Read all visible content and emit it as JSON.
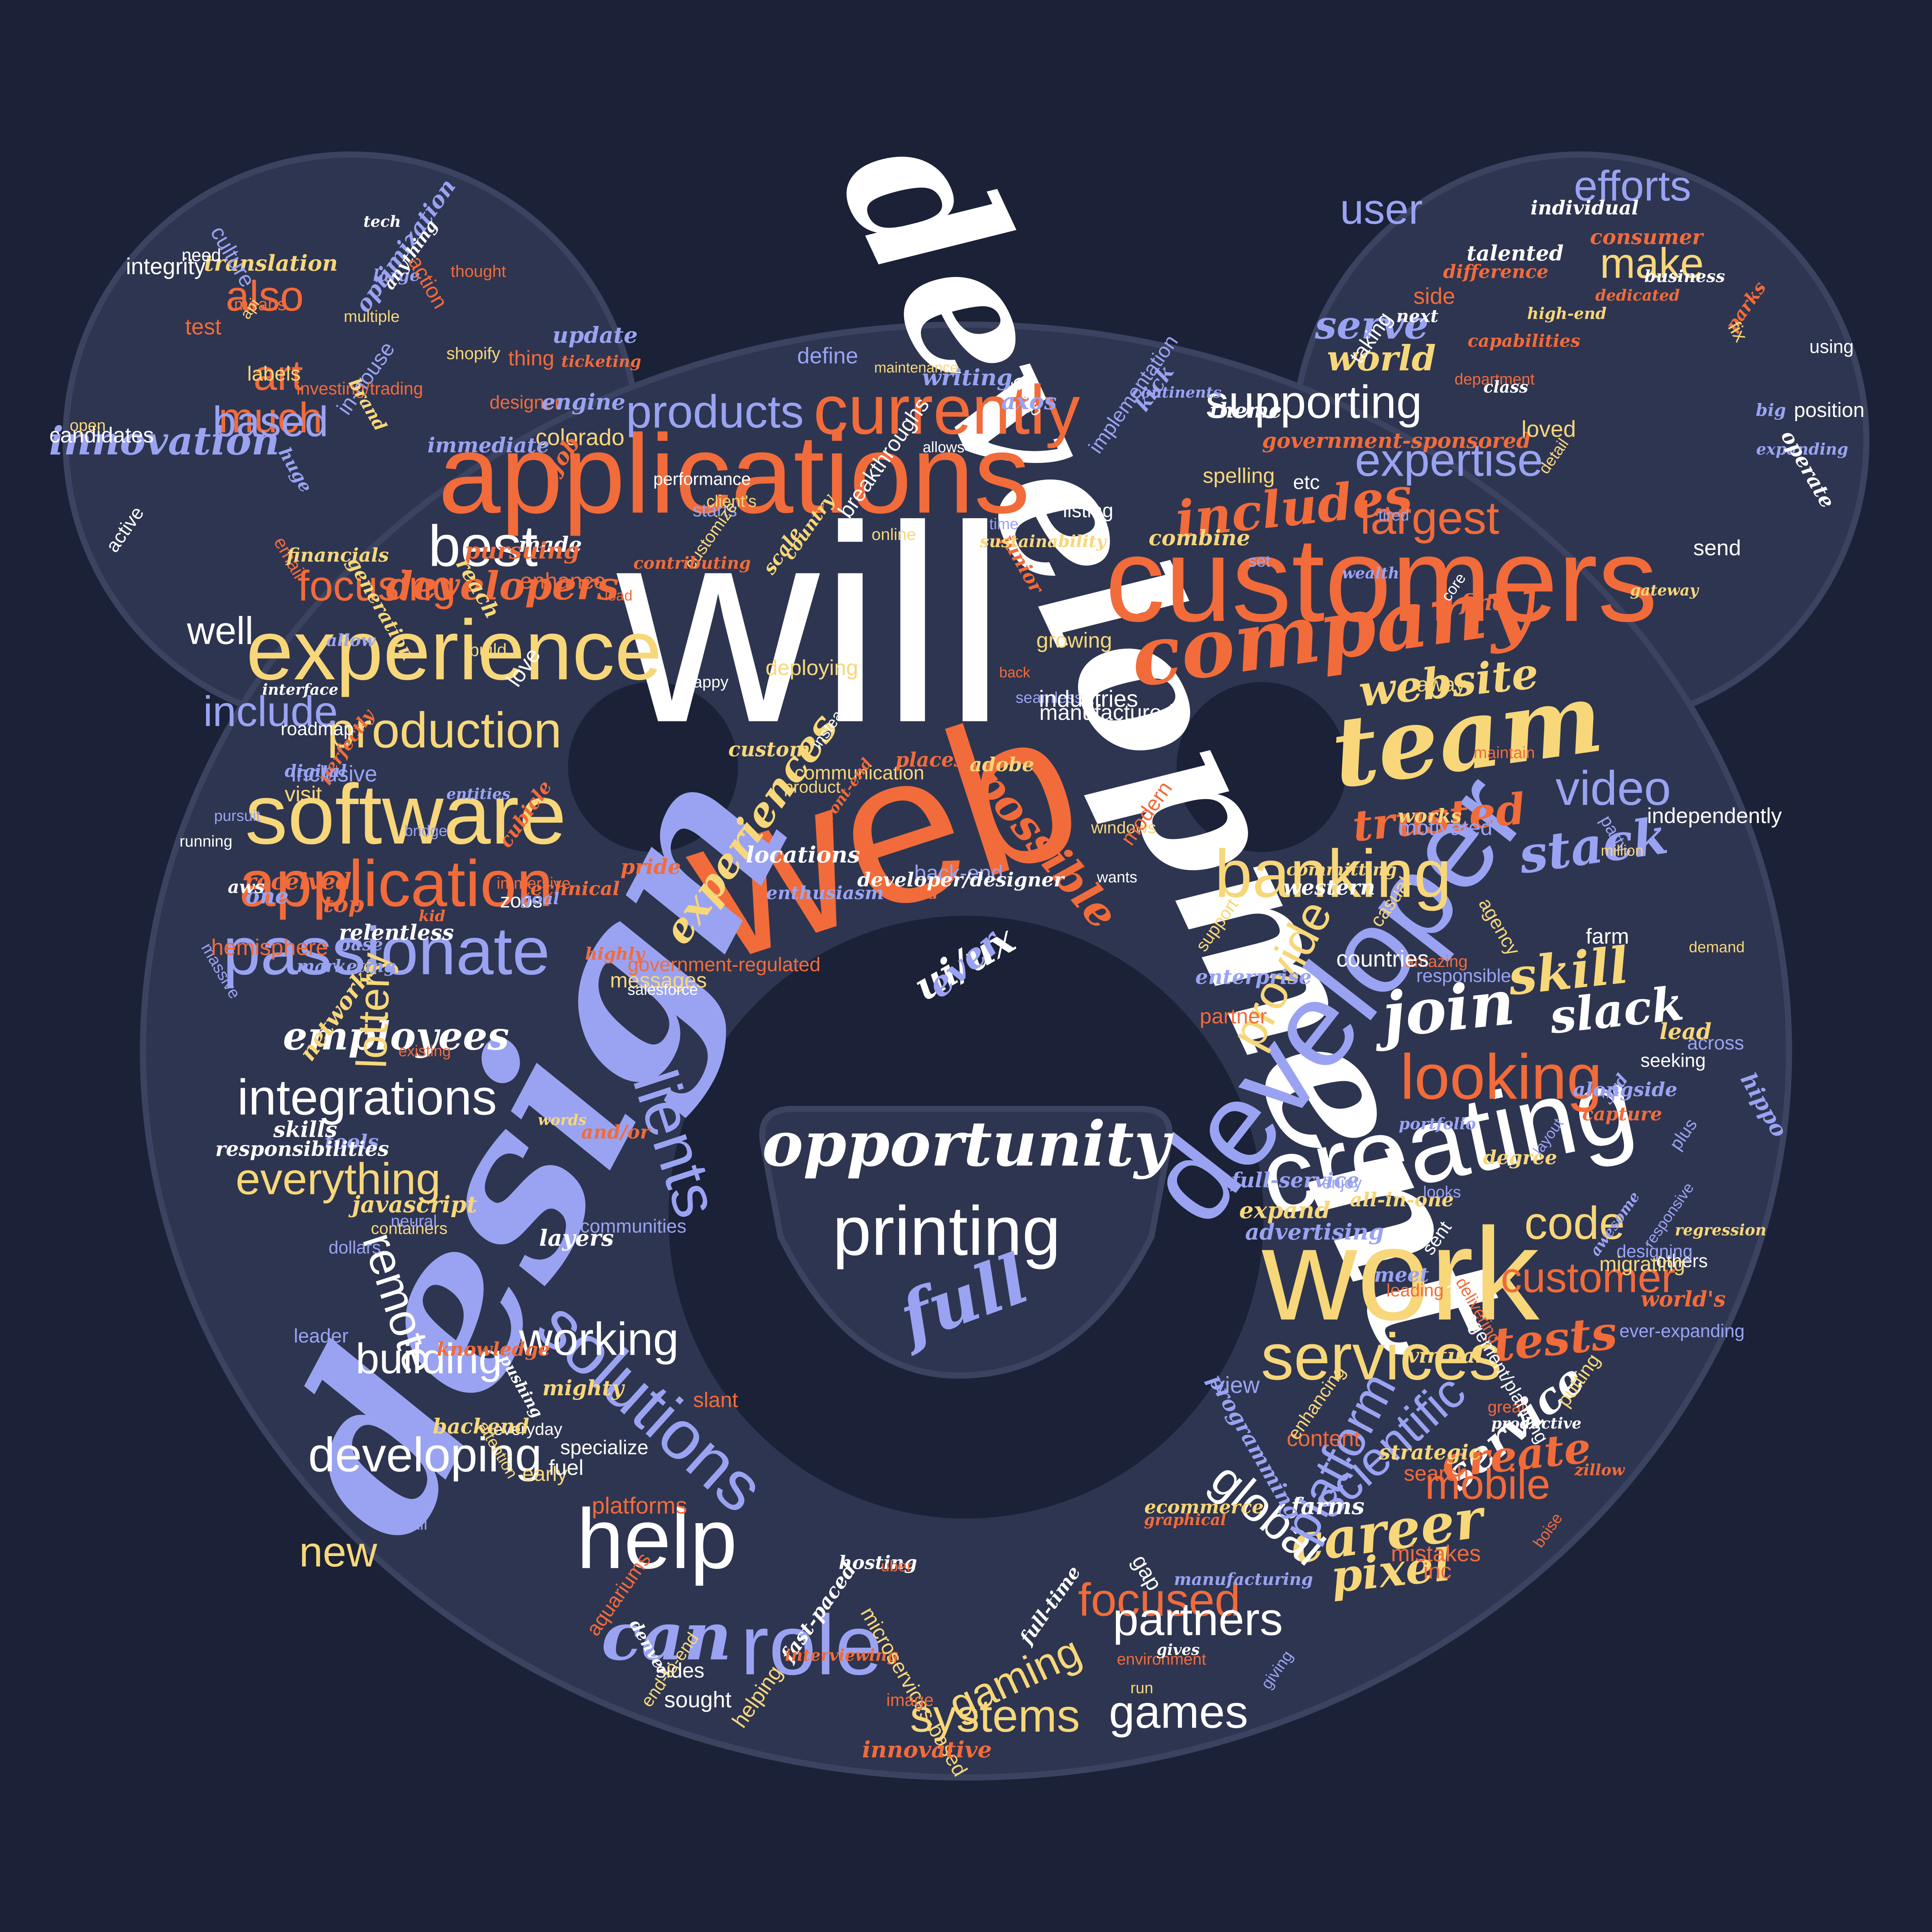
{
  "colors": {
    "background": "#1b2136",
    "bear_fill": "#2e3550",
    "bear_outline": "#3c4360",
    "white": "#ffffff",
    "orange": "#f26b3a",
    "yellow": "#f7d77a",
    "periwinkle": "#9aa3f2"
  },
  "words": [
    {
      "text": "will",
      "c": "white",
      "s": "plain",
      "fs": 0.145,
      "r": 0
    },
    {
      "text": "development",
      "c": "white",
      "s": "script",
      "fs": 0.095,
      "r": 65
    },
    {
      "text": "web",
      "c": "orange",
      "s": "plain",
      "fs": 0.11,
      "r": -18
    },
    {
      "text": "design",
      "c": "periwinkle",
      "s": "script",
      "fs": 0.115,
      "r": -62
    },
    {
      "text": "customers",
      "c": "orange",
      "s": "plain",
      "fs": 0.062,
      "r": 0
    },
    {
      "text": "applications",
      "c": "orange",
      "s": "plain",
      "fs": 0.058,
      "r": 0
    },
    {
      "text": "developer",
      "c": "periwinkle",
      "s": "plain",
      "fs": 0.062,
      "r": -52
    },
    {
      "text": "work",
      "c": "yellow",
      "s": "plain",
      "fs": 0.068,
      "r": 0
    },
    {
      "text": "creating",
      "c": "white",
      "s": "plain",
      "fs": 0.055,
      "r": -12
    },
    {
      "text": "experience",
      "c": "yellow",
      "s": "plain",
      "fs": 0.044,
      "r": 0
    },
    {
      "text": "software",
      "c": "yellow",
      "s": "plain",
      "fs": 0.044,
      "r": 0
    },
    {
      "text": "team",
      "c": "yellow",
      "s": "script",
      "fs": 0.05,
      "r": -8
    },
    {
      "text": "company",
      "c": "orange",
      "s": "script",
      "fs": 0.042,
      "r": -8
    },
    {
      "text": "currently",
      "c": "orange",
      "s": "plain",
      "fs": 0.036,
      "r": 0
    },
    {
      "text": "help",
      "c": "white",
      "s": "plain",
      "fs": 0.044,
      "r": 0
    },
    {
      "text": "role",
      "c": "periwinkle",
      "s": "plain",
      "fs": 0.044,
      "r": 0
    },
    {
      "text": "solutions",
      "c": "periwinkle",
      "s": "plain",
      "fs": 0.036,
      "r": 42
    },
    {
      "text": "passionate",
      "c": "periwinkle",
      "s": "plain",
      "fs": 0.035,
      "r": 0
    },
    {
      "text": "application",
      "c": "orange",
      "s": "plain",
      "fs": 0.034,
      "r": 0
    },
    {
      "text": "banking",
      "c": "yellow",
      "s": "plain",
      "fs": 0.035,
      "r": 0
    },
    {
      "text": "printing",
      "c": "white",
      "s": "plain",
      "fs": 0.036,
      "r": 0
    },
    {
      "text": "opportunity",
      "c": "white",
      "s": "script",
      "fs": 0.032,
      "r": 0
    },
    {
      "text": "services",
      "c": "yellow",
      "s": "plain",
      "fs": 0.034,
      "r": 0
    },
    {
      "text": "looking",
      "c": "orange",
      "s": "plain",
      "fs": 0.033,
      "r": 0
    },
    {
      "text": "clients",
      "c": "periwinkle",
      "s": "plain",
      "fs": 0.033,
      "r": 72
    },
    {
      "text": "products",
      "c": "periwinkle",
      "s": "plain",
      "fs": 0.024,
      "r": 0
    },
    {
      "text": "best",
      "c": "white",
      "s": "plain",
      "fs": 0.03,
      "r": 0
    },
    {
      "text": "includes",
      "c": "orange",
      "s": "script",
      "fs": 0.026,
      "r": -6
    },
    {
      "text": "can",
      "c": "periwinkle",
      "s": "script",
      "fs": 0.034,
      "r": 0
    },
    {
      "text": "full",
      "c": "periwinkle",
      "s": "script",
      "fs": 0.035,
      "r": -20
    },
    {
      "text": "career",
      "c": "yellow",
      "s": "script",
      "fs": 0.028,
      "r": -8
    },
    {
      "text": "production",
      "c": "yellow",
      "s": "plain",
      "fs": 0.026,
      "r": 0
    },
    {
      "text": "integrations",
      "c": "white",
      "s": "plain",
      "fs": 0.026,
      "r": 0
    },
    {
      "text": "developing",
      "c": "white",
      "s": "plain",
      "fs": 0.025,
      "r": 0
    },
    {
      "text": "supporting",
      "c": "white",
      "s": "plain",
      "fs": 0.024,
      "r": 0
    },
    {
      "text": "expertise",
      "c": "periwinkle",
      "s": "plain",
      "fs": 0.024,
      "r": 0
    },
    {
      "text": "largest",
      "c": "orange",
      "s": "plain",
      "fs": 0.024,
      "r": 0
    },
    {
      "text": "website",
      "c": "yellow",
      "s": "script",
      "fs": 0.022,
      "r": -6
    },
    {
      "text": "trusted",
      "c": "orange",
      "s": "script",
      "fs": 0.022,
      "r": -6
    },
    {
      "text": "possible",
      "c": "orange",
      "s": "script",
      "fs": 0.022,
      "r": 50
    },
    {
      "text": "experiences",
      "c": "yellow",
      "s": "script",
      "fs": 0.021,
      "r": -55
    },
    {
      "text": "video",
      "c": "periwinkle",
      "s": "plain",
      "fs": 0.025,
      "r": 0
    },
    {
      "text": "stack",
      "c": "periwinkle",
      "s": "script",
      "fs": 0.026,
      "r": -8
    },
    {
      "text": "slack",
      "c": "white",
      "s": "script",
      "fs": 0.024,
      "r": -6
    },
    {
      "text": "join",
      "c": "white",
      "s": "script",
      "fs": 0.032,
      "r": -6
    },
    {
      "text": "skill",
      "c": "yellow",
      "s": "script",
      "fs": 0.026,
      "r": -6
    },
    {
      "text": "provide",
      "c": "yellow",
      "s": "plain",
      "fs": 0.025,
      "r": -62
    },
    {
      "text": "global",
      "c": "white",
      "s": "plain",
      "fs": 0.025,
      "r": 40
    },
    {
      "text": "platform",
      "c": "periwinkle",
      "s": "plain",
      "fs": 0.026,
      "r": -62
    },
    {
      "text": "scientific",
      "c": "periwinkle",
      "s": "plain",
      "fs": 0.025,
      "r": -42
    },
    {
      "text": "service",
      "c": "white",
      "s": "script",
      "fs": 0.022,
      "r": -40
    },
    {
      "text": "create",
      "c": "orange",
      "s": "script",
      "fs": 0.022,
      "r": -6
    },
    {
      "text": "mobile",
      "c": "orange",
      "s": "plain",
      "fs": 0.022,
      "r": 0
    },
    {
      "text": "customer",
      "c": "orange",
      "s": "plain",
      "fs": 0.022,
      "r": 0
    },
    {
      "text": "tests",
      "c": "orange",
      "s": "script",
      "fs": 0.024,
      "r": -6
    },
    {
      "text": "pixel",
      "c": "yellow",
      "s": "script",
      "fs": 0.023,
      "r": -6
    },
    {
      "text": "focused",
      "c": "orange",
      "s": "plain",
      "fs": 0.024,
      "r": 0
    },
    {
      "text": "partners",
      "c": "white",
      "s": "plain",
      "fs": 0.024,
      "r": 0
    },
    {
      "text": "gaming",
      "c": "yellow",
      "s": "plain",
      "fs": 0.022,
      "r": -25
    },
    {
      "text": "systems",
      "c": "yellow",
      "s": "plain",
      "fs": 0.024,
      "r": 0
    },
    {
      "text": "games",
      "c": "white",
      "s": "plain",
      "fs": 0.024,
      "r": 0
    },
    {
      "text": "code",
      "c": "yellow",
      "s": "plain",
      "fs": 0.024,
      "r": 0
    },
    {
      "text": "working",
      "c": "white",
      "s": "plain",
      "fs": 0.024,
      "r": 0
    },
    {
      "text": "remote",
      "c": "white",
      "s": "plain",
      "fs": 0.024,
      "r": 72
    },
    {
      "text": "building",
      "c": "white",
      "s": "plain",
      "fs": 0.022,
      "r": 0
    },
    {
      "text": "everything",
      "c": "yellow",
      "s": "plain",
      "fs": 0.023,
      "r": 0
    },
    {
      "text": "employees",
      "c": "white",
      "s": "script",
      "fs": 0.02,
      "r": 0
    },
    {
      "text": "lottery",
      "c": "yellow",
      "s": "plain",
      "fs": 0.022,
      "r": -88
    },
    {
      "text": "focusing",
      "c": "orange",
      "s": "plain",
      "fs": 0.022,
      "r": 0
    },
    {
      "text": "developers",
      "c": "orange",
      "s": "script",
      "fs": 0.02,
      "r": 0
    },
    {
      "text": "include",
      "c": "periwinkle",
      "s": "plain",
      "fs": 0.022,
      "r": 0
    },
    {
      "text": "innovation",
      "c": "periwinkle",
      "s": "script",
      "fs": 0.02,
      "r": 0
    },
    {
      "text": "well",
      "c": "white",
      "s": "plain",
      "fs": 0.02,
      "r": 0
    },
    {
      "text": "also",
      "c": "orange",
      "s": "plain",
      "fs": 0.022,
      "r": 0
    },
    {
      "text": "art",
      "c": "orange",
      "s": "plain",
      "fs": 0.022,
      "r": 0
    },
    {
      "text": "much",
      "c": "orange",
      "s": "plain",
      "fs": 0.022,
      "r": 0
    },
    {
      "text": "based",
      "c": "periwinkle",
      "s": "plain",
      "fs": 0.022,
      "r": 0
    },
    {
      "text": "serve",
      "c": "periwinkle",
      "s": "script",
      "fs": 0.02,
      "r": 0
    },
    {
      "text": "world",
      "c": "yellow",
      "s": "script",
      "fs": 0.018,
      "r": 0
    },
    {
      "text": "make",
      "c": "yellow",
      "s": "plain",
      "fs": 0.022,
      "r": 0
    },
    {
      "text": "efforts",
      "c": "periwinkle",
      "s": "plain",
      "fs": 0.022,
      "r": 0
    },
    {
      "text": "user",
      "c": "periwinkle",
      "s": "plain",
      "fs": 0.022,
      "r": 0
    },
    {
      "text": "new",
      "c": "yellow",
      "s": "plain",
      "fs": 0.022,
      "r": 0
    },
    {
      "text": "ui/ux",
      "c": "white",
      "s": "script",
      "fs": 0.02,
      "r": -30
    },
    {
      "text": "ever",
      "c": "periwinkle",
      "s": "script",
      "fs": 0.018,
      "r": -40
    }
  ],
  "small_words": [
    "email",
    "windows",
    "massive",
    "allows",
    "received",
    "colorado",
    "seamless",
    "send",
    "modern",
    "expand",
    "back-end",
    "made",
    "mistakes",
    "all-in-one",
    "starts",
    "wants",
    "capture",
    "gateway",
    "advertising",
    "tech",
    "boise",
    "customize",
    "pursuit",
    "sides",
    "dedicated",
    "communication",
    "define",
    "others",
    "content",
    "ecommerce",
    "responsible",
    "theme",
    "back",
    "containers",
    "plus",
    "fast-paced",
    "cubicle",
    "casual",
    "entities",
    "individual",
    "knowledge",
    "helping",
    "leader",
    "happy",
    "delivering",
    "visit",
    "inclusive",
    "hosting",
    "contributing",
    "degree",
    "base",
    "listing",
    "means",
    "putting",
    "implementation",
    "interface",
    "parks",
    "deploying",
    "designing",
    "everyday",
    "uber",
    "backend",
    "one",
    "developer/designer",
    "side",
    "build",
    "party",
    "aws",
    "pursuing",
    "high-end",
    "awesome",
    "active",
    "aquariums",
    "messages",
    "immediate",
    "love",
    "platforms",
    "growing",
    "meet",
    "using",
    "perfectly",
    "generation",
    "large",
    "salesforce",
    "junior",
    "spelling",
    "ever-expanding",
    "layers",
    "department",
    "agency",
    "in-house",
    "seeking",
    "ticketing",
    "words",
    "manufacturing",
    "running",
    "interviewing",
    "strategic",
    "giving",
    "manufactured",
    "investing/trading",
    "virtual",
    "small",
    "independently",
    "immersive",
    "microservices-based",
    "expanding",
    "next",
    "amazing",
    "sustainability",
    "continents",
    "relentless",
    "innovative",
    "migrating",
    "time",
    "performance",
    "designer",
    "javascript",
    "layout",
    "countries",
    "test",
    "online",
    "kick",
    "farm",
    "great",
    "regression",
    "looks",
    "business",
    "consumer",
    "lead",
    "hippo",
    "pushing",
    "leading",
    "early",
    "tired",
    "full-time",
    "difference",
    "translation",
    "allow",
    "fuel",
    "hemisphere",
    "financials",
    "enjoy",
    "taking",
    "find",
    "works",
    "writing",
    "candidates",
    "job",
    "networks",
    "huge",
    "farms",
    "image",
    "enhancing",
    "optimization",
    "sent",
    "places",
    "demand",
    "motivated",
    "zoos",
    "government-sponsored",
    "shopify",
    "across",
    "operate",
    "capabilities",
    "million",
    "portfolio",
    "denver",
    "front-end",
    "client's",
    "culture",
    "anything",
    "action",
    "detail",
    "marketing",
    "western",
    "highly",
    "committing",
    "full-service",
    "instead",
    "zillow",
    "end-to-end",
    "communities",
    "need",
    "enhance",
    "country",
    "enterprise",
    "roadmap",
    "maintain",
    "custom",
    "dollars",
    "class",
    "world's",
    "support",
    "digital",
    "industries",
    "and/or",
    "adobe",
    "engine",
    "position",
    "existing",
    "brand",
    "tools",
    "talented",
    "environment",
    "labels",
    "enthusiasm",
    "group",
    "technical",
    "combine",
    "wealth",
    "integrity",
    "government-regulated",
    "loved",
    "bridge",
    "gap",
    "partner",
    "open",
    "programming",
    "productive",
    "thing",
    "attention",
    "goal",
    "gives",
    "slant",
    "api",
    "alongside",
    "locations",
    "inc",
    "run",
    "update",
    "core",
    "thought",
    "fix",
    "view",
    "etc",
    "graphical",
    "multiple",
    "responsive",
    "specialize",
    "top",
    "mighty",
    "neural",
    "sought",
    "kid",
    "maintenance",
    "set",
    "responsibilities",
    "pride",
    "product",
    "3rd",
    "breakthroughs",
    "paid",
    "reach",
    "big",
    "skills",
    "search",
    "away",
    "axos",
    "management/planning",
    "load",
    "scale"
  ]
}
